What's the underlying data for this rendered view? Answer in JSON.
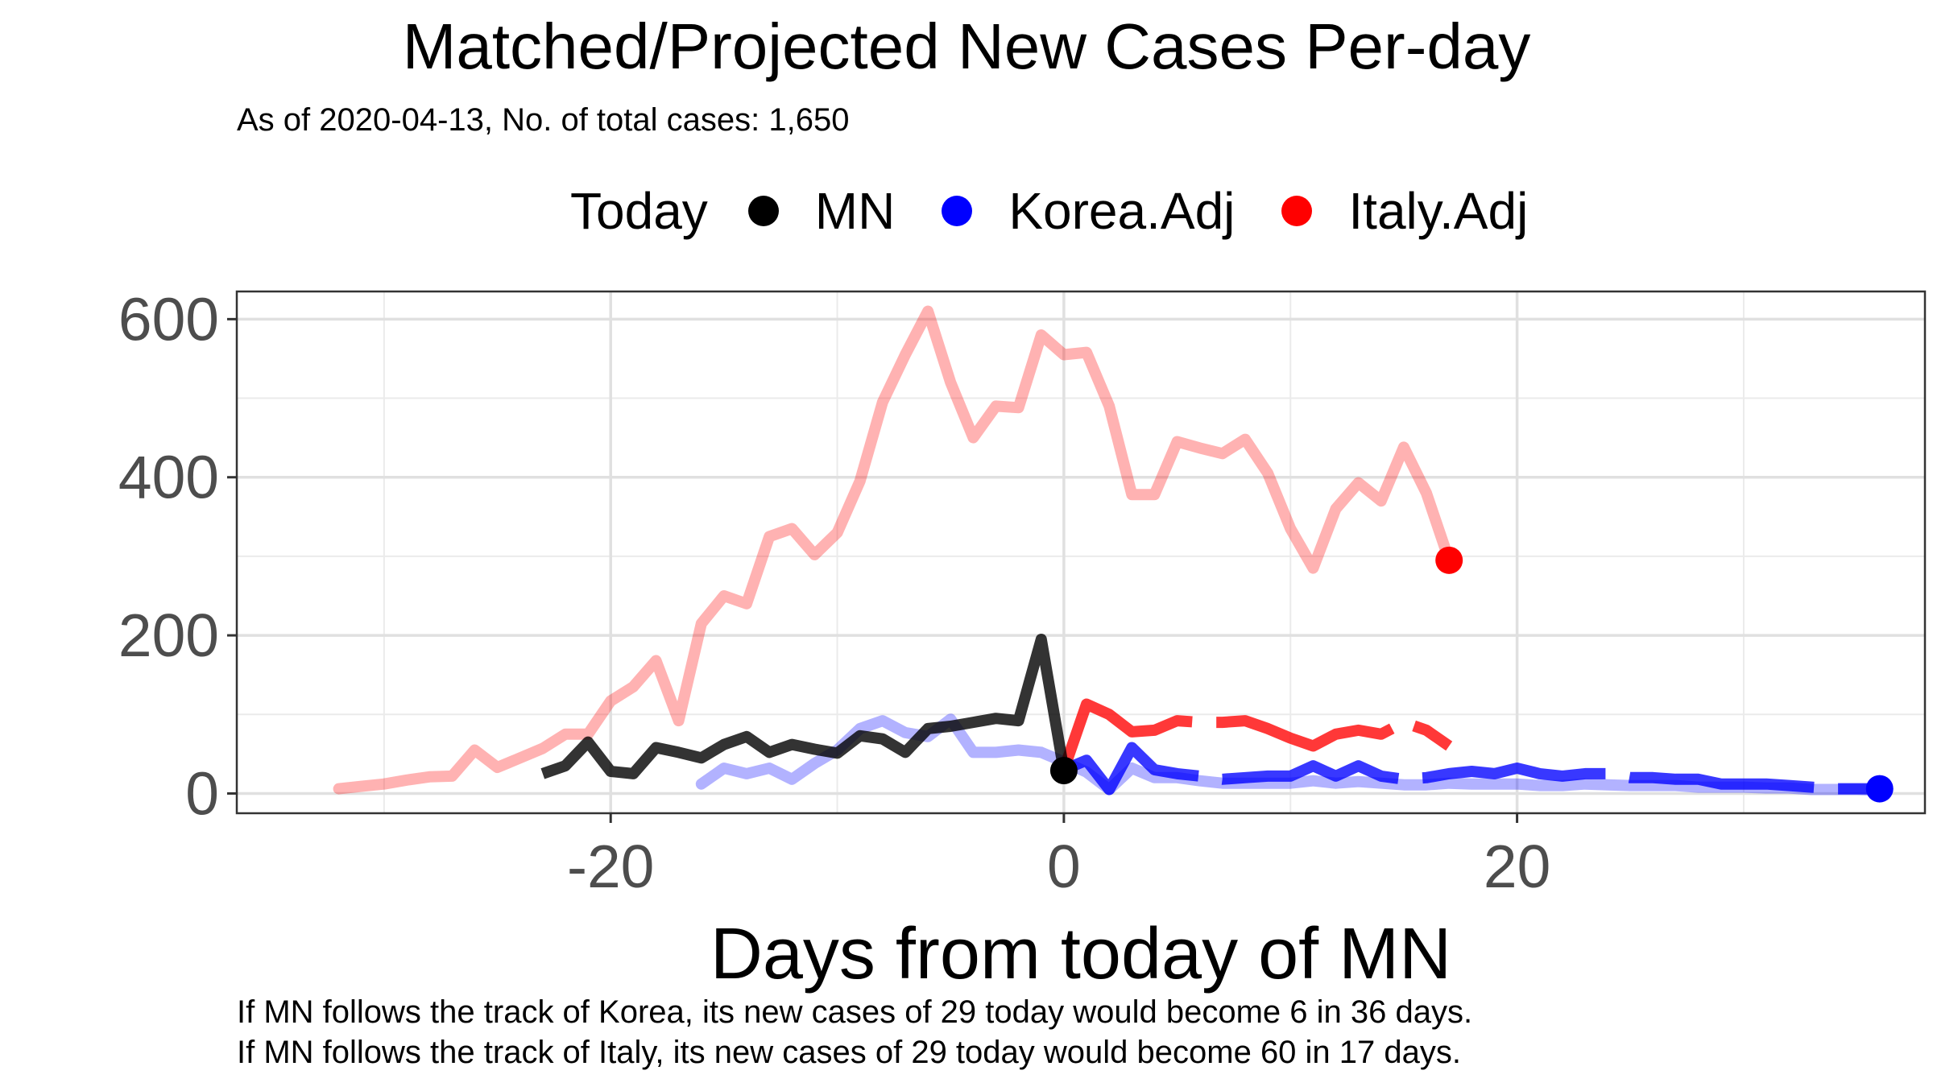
{
  "chart_data": {
    "type": "line",
    "title": "Matched/Projected New Cases Per-day",
    "subtitle": "As of 2020-04-13, No. of total cases: 1,650",
    "xlabel": "Days from today of MN",
    "ylabel": "",
    "xlim": [
      -36.5,
      38
    ],
    "ylim": [
      -25,
      635
    ],
    "x_ticks": [
      -20,
      0,
      20
    ],
    "x_tick_labels": [
      "-20",
      "0",
      "20"
    ],
    "y_ticks": [
      0,
      200,
      400,
      600
    ],
    "y_tick_labels": [
      "0",
      "200",
      "400",
      "600"
    ],
    "grid": true,
    "legend": {
      "title": "Today",
      "position": "top",
      "items": [
        {
          "label": "MN",
          "color": "#000000"
        },
        {
          "label": "Korea.Adj",
          "color": "#0000ff"
        },
        {
          "label": "Italy.Adj",
          "color": "#ff0000"
        }
      ]
    },
    "series": [
      {
        "name": "Italy.Adj",
        "color": "#ff0000",
        "history": {
          "x": [
            -32,
            -31,
            -30,
            -29,
            -28,
            -27,
            -26,
            -25,
            -24,
            -23,
            -22,
            -21,
            -20,
            -19,
            -18,
            -17,
            -16,
            -15,
            -14,
            -13,
            -12,
            -11,
            -10,
            -9,
            -8,
            -7,
            -6,
            -5,
            -4,
            -3,
            -2,
            -1,
            0,
            1,
            2,
            3,
            4,
            5,
            6,
            7,
            8,
            9,
            10,
            11,
            12,
            13,
            14,
            15,
            16,
            17
          ],
          "y": [
            6,
            9,
            12,
            17,
            21,
            22,
            55,
            33,
            45,
            57,
            75,
            75,
            117,
            135,
            168,
            92,
            215,
            250,
            240,
            325,
            335,
            302,
            330,
            395,
            495,
            555,
            610,
            520,
            450,
            490,
            488,
            580,
            555,
            558,
            490,
            378,
            378,
            445,
            437,
            430,
            448,
            405,
            335,
            285,
            360,
            393,
            370,
            438,
            380,
            295
          ]
        },
        "projection": {
          "x": [
            0,
            1,
            2,
            3,
            4,
            5,
            6,
            7,
            8,
            9,
            10,
            11,
            12,
            13,
            14,
            15,
            16,
            17
          ],
          "y": [
            30,
            113,
            100,
            78,
            80,
            92,
            90,
            90,
            92,
            82,
            70,
            60,
            75,
            80,
            75,
            90,
            80,
            60
          ]
        },
        "today": {
          "x": 17,
          "y": 295
        }
      },
      {
        "name": "Korea.Adj",
        "color": "#0000ff",
        "history": {
          "x": [
            -16,
            -15,
            -14,
            -13,
            -12,
            -11,
            -10,
            -9,
            -8,
            -7,
            -6,
            -5,
            -4,
            -3,
            -2,
            -1,
            0,
            1,
            2,
            3,
            4,
            5,
            6,
            7,
            8,
            9,
            10,
            11,
            12,
            13,
            14,
            15,
            16,
            17,
            18,
            19,
            20,
            21,
            22,
            23,
            24,
            25,
            26,
            27,
            28,
            29,
            30,
            31,
            32,
            33,
            34,
            35,
            36
          ],
          "y": [
            12,
            32,
            25,
            32,
            18,
            38,
            55,
            82,
            92,
            77,
            72,
            94,
            52,
            52,
            55,
            52,
            40,
            27,
            5,
            32,
            20,
            20,
            16,
            13,
            13,
            13,
            13,
            16,
            13,
            15,
            13,
            11,
            11,
            13,
            12,
            12,
            12,
            10,
            10,
            12,
            11,
            10,
            10,
            10,
            8,
            8,
            8,
            7,
            7,
            5,
            5,
            5,
            4
          ]
        },
        "projection": {
          "x": [
            0,
            1,
            2,
            3,
            4,
            5,
            6,
            7,
            8,
            9,
            10,
            11,
            12,
            13,
            14,
            15,
            16,
            17,
            18,
            19,
            20,
            21,
            22,
            23,
            24,
            25,
            26,
            27,
            28,
            29,
            30,
            31,
            32,
            33,
            34,
            35,
            36
          ],
          "y": [
            30,
            42,
            5,
            58,
            30,
            25,
            22,
            18,
            20,
            22,
            22,
            35,
            22,
            35,
            22,
            18,
            20,
            25,
            28,
            25,
            32,
            25,
            22,
            25,
            25,
            20,
            20,
            18,
            18,
            12,
            12,
            12,
            10,
            8,
            6,
            6,
            6
          ]
        },
        "today": {
          "x": 36,
          "y": 6
        }
      },
      {
        "name": "MN",
        "color": "#000000",
        "history": {
          "x": [
            -23,
            -22,
            -21,
            -20,
            -19,
            -18,
            -17,
            -16,
            -15,
            -14,
            -13,
            -12,
            -11,
            -10,
            -9,
            -8,
            -7,
            -6,
            -5,
            -4,
            -3,
            -2,
            -1,
            0
          ],
          "y": [
            25,
            35,
            65,
            28,
            25,
            58,
            52,
            45,
            62,
            72,
            52,
            62,
            56,
            51,
            73,
            69,
            52,
            82,
            85,
            90,
            95,
            92,
            195,
            29
          ]
        },
        "today": {
          "x": 0,
          "y": 29
        }
      }
    ]
  },
  "captions": [
    "If MN follows the track of Korea, its new cases of 29 today would become 6 in 36 days.",
    "If MN follows the track of Italy, its new cases of 29 today would become 60 in 17 days."
  ]
}
